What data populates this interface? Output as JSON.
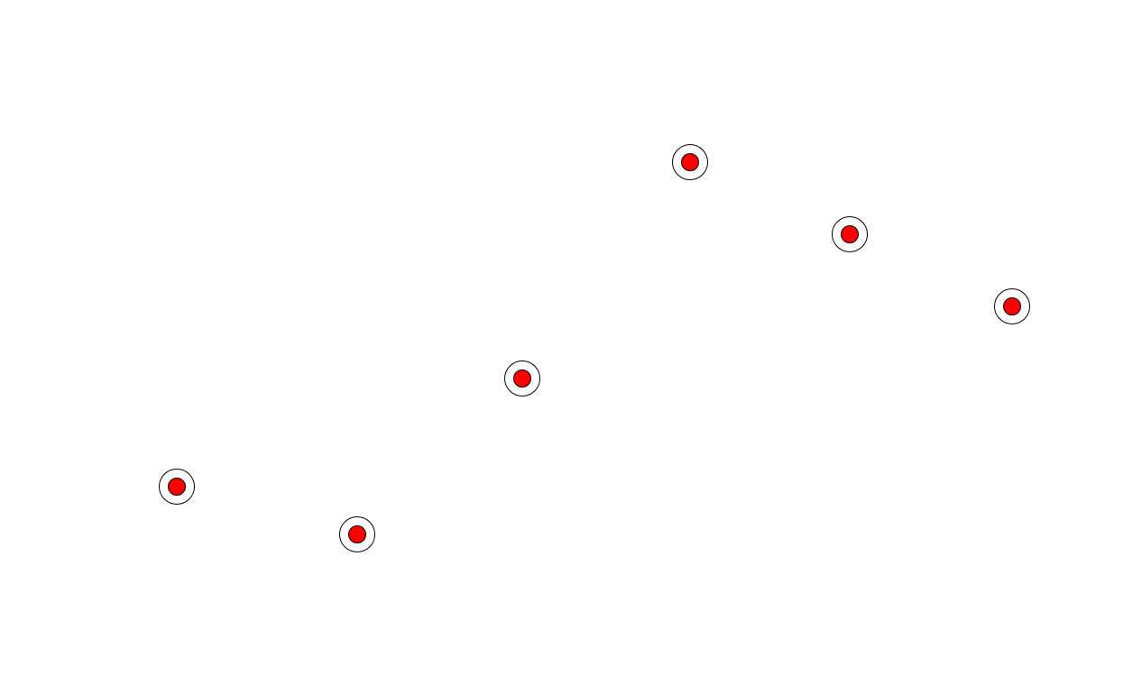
{
  "targets": {
    "count": 6,
    "ring_color": "#ffffff",
    "outline_color": "#000000",
    "dot_color": "#ff0000"
  }
}
